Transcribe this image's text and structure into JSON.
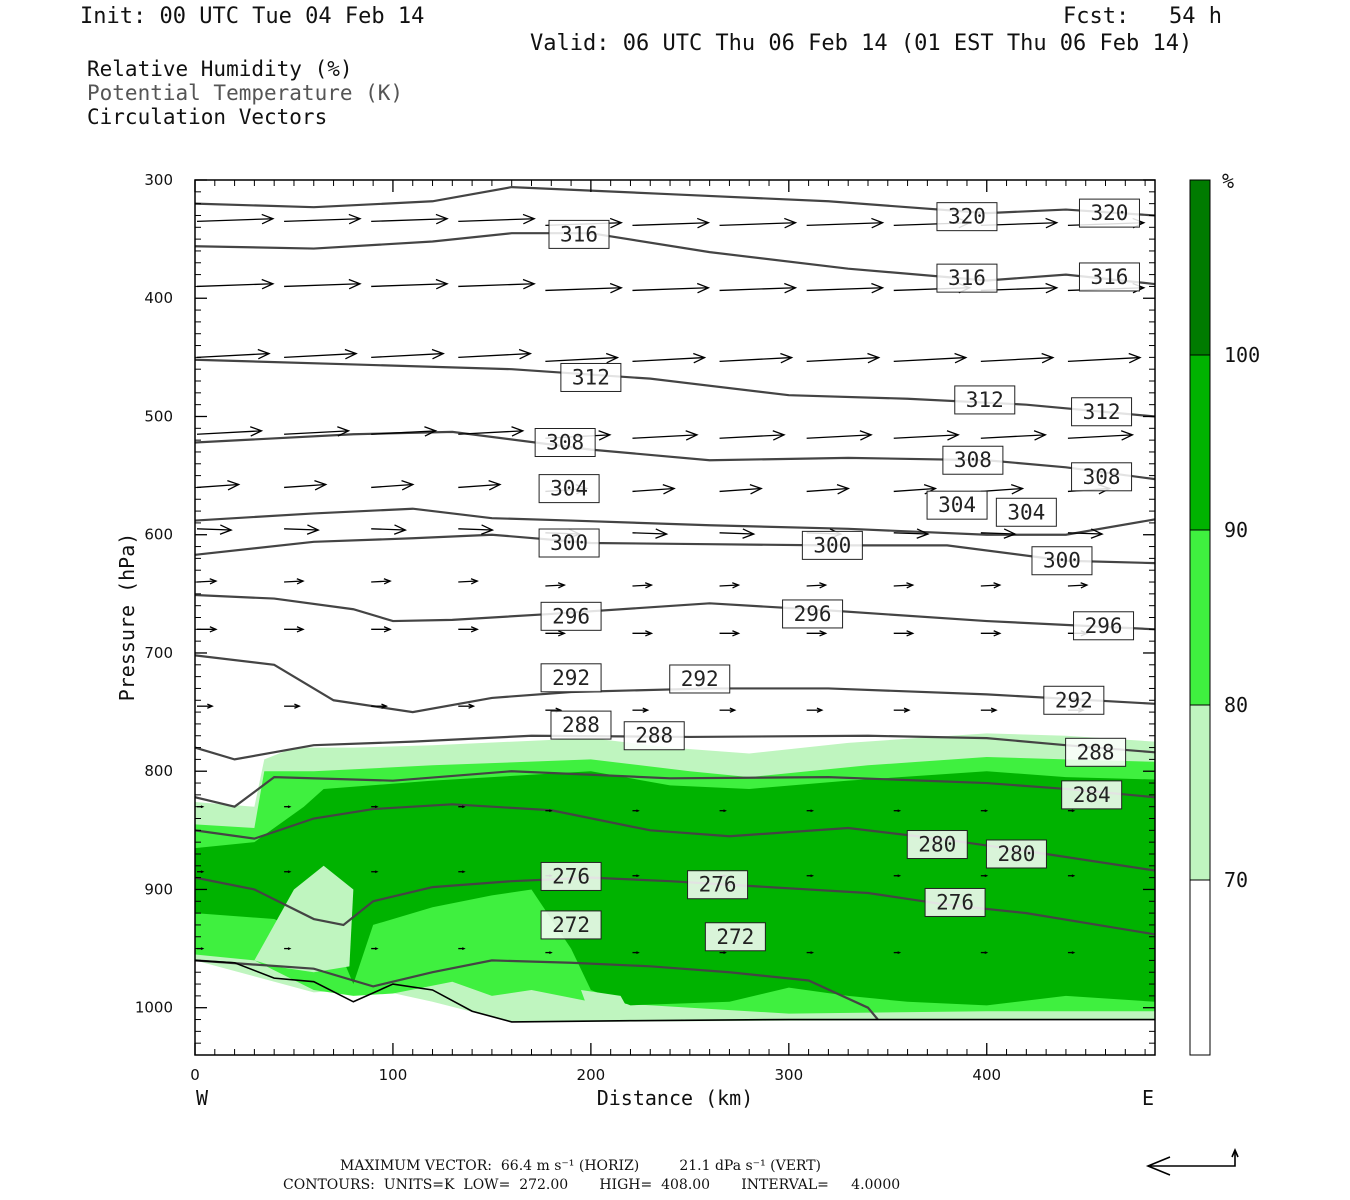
{
  "header": {
    "init": "Init: 00 UTC Tue 04 Feb 14",
    "fcst": "Fcst:   54 h",
    "valid": "Valid: 06 UTC Thu 06 Feb 14 (01 EST Thu 06 Feb 14)"
  },
  "legend": {
    "rh": "Relative Humidity (%)",
    "theta": "Potential Temperature (K)",
    "vectors": "Circulation Vectors"
  },
  "footer": {
    "max_vector": "MAXIMUM VECTOR:  66.4 m s⁻¹ (HORIZ)         21.1 dPa s⁻¹ (VERT)",
    "contours": "CONTOURS:  UNITS=K  LOW=  272.00       HIGH=  408.00       INTERVAL=     4.0000"
  },
  "colors": {
    "rh70": "#bff5bf",
    "rh80": "#3ff03f",
    "rh90": "#00b300",
    "rh100": "#007b00",
    "isentrope": "#444444",
    "vector": "#000000"
  },
  "chart_data": {
    "type": "cross-section",
    "xlabel": "Distance (km)",
    "ylabel": "Pressure (hPa)",
    "x_range": [
      0,
      485
    ],
    "y_range": [
      1040,
      300
    ],
    "x_ticks": [
      "0",
      "100",
      "200",
      "300",
      "400"
    ],
    "y_ticks": [
      "300",
      "400",
      "500",
      "600",
      "700",
      "800",
      "900",
      "1000"
    ],
    "west_label": "W",
    "east_label": "E",
    "colorbar": {
      "unit": "%",
      "ticks": [
        "100",
        "90",
        "80",
        "70"
      ]
    },
    "isentropes": [
      {
        "theta": 320,
        "points": [
          [
            0,
            320
          ],
          [
            60,
            323
          ],
          [
            120,
            318
          ],
          [
            160,
            306
          ],
          [
            240,
            312
          ],
          [
            320,
            318
          ],
          [
            400,
            328
          ],
          [
            440,
            325
          ],
          [
            485,
            330
          ]
        ],
        "labels": [
          [
            390,
            331
          ],
          [
            462,
            328
          ]
        ]
      },
      {
        "theta": 316,
        "points": [
          [
            0,
            356
          ],
          [
            60,
            358
          ],
          [
            120,
            352
          ],
          [
            160,
            345
          ],
          [
            200,
            345
          ],
          [
            260,
            361
          ],
          [
            330,
            375
          ],
          [
            400,
            385
          ],
          [
            440,
            380
          ],
          [
            485,
            388
          ]
        ],
        "labels": [
          [
            194,
            346
          ],
          [
            390,
            383
          ],
          [
            462,
            382
          ]
        ]
      },
      {
        "theta": 312,
        "points": [
          [
            0,
            452
          ],
          [
            80,
            456
          ],
          [
            160,
            460
          ],
          [
            230,
            468
          ],
          [
            300,
            482
          ],
          [
            360,
            485
          ],
          [
            420,
            490
          ],
          [
            485,
            500
          ]
        ],
        "labels": [
          [
            200,
            467
          ],
          [
            399,
            486
          ],
          [
            458,
            496
          ]
        ]
      },
      {
        "theta": 308,
        "points": [
          [
            0,
            522
          ],
          [
            80,
            515
          ],
          [
            130,
            513
          ],
          [
            200,
            528
          ],
          [
            260,
            537
          ],
          [
            330,
            535
          ],
          [
            400,
            537
          ],
          [
            440,
            543
          ],
          [
            485,
            553
          ]
        ],
        "labels": [
          [
            187,
            522
          ],
          [
            393,
            537
          ],
          [
            458,
            551
          ]
        ]
      },
      {
        "theta": 304,
        "points": [
          [
            0,
            588
          ],
          [
            60,
            582
          ],
          [
            110,
            578
          ],
          [
            150,
            586
          ],
          [
            190,
            588
          ],
          [
            260,
            592
          ],
          [
            330,
            595
          ],
          [
            400,
            600
          ],
          [
            440,
            600
          ],
          [
            485,
            587
          ]
        ],
        "labels": [
          [
            189,
            561
          ],
          [
            385,
            575
          ],
          [
            420,
            581
          ]
        ]
      },
      {
        "theta": 300,
        "points": [
          [
            0,
            617
          ],
          [
            60,
            606
          ],
          [
            110,
            603
          ],
          [
            150,
            600
          ],
          [
            200,
            607
          ],
          [
            260,
            608
          ],
          [
            320,
            609
          ],
          [
            380,
            609
          ],
          [
            440,
            622
          ],
          [
            485,
            624
          ]
        ],
        "labels": [
          [
            189,
            607
          ],
          [
            322,
            609
          ],
          [
            438,
            622
          ]
        ]
      },
      {
        "theta": 296,
        "points": [
          [
            0,
            651
          ],
          [
            40,
            654
          ],
          [
            80,
            663
          ],
          [
            100,
            673
          ],
          [
            130,
            672
          ],
          [
            180,
            667
          ],
          [
            260,
            658
          ],
          [
            320,
            664
          ],
          [
            400,
            673
          ],
          [
            485,
            680
          ]
        ],
        "labels": [
          [
            190,
            669
          ],
          [
            312,
            667
          ],
          [
            459,
            677
          ]
        ]
      },
      {
        "theta": 292,
        "points": [
          [
            0,
            702
          ],
          [
            40,
            710
          ],
          [
            70,
            740
          ],
          [
            110,
            750
          ],
          [
            150,
            738
          ],
          [
            190,
            733
          ],
          [
            260,
            730
          ],
          [
            320,
            730
          ],
          [
            400,
            735
          ],
          [
            485,
            743
          ]
        ],
        "labels": [
          [
            190,
            721
          ],
          [
            255,
            722
          ],
          [
            444,
            740
          ]
        ]
      },
      {
        "theta": 288,
        "points": [
          [
            0,
            780
          ],
          [
            20,
            790
          ],
          [
            60,
            778
          ],
          [
            110,
            775
          ],
          [
            170,
            770
          ],
          [
            250,
            771
          ],
          [
            340,
            770
          ],
          [
            400,
            772
          ],
          [
            440,
            778
          ],
          [
            485,
            784
          ]
        ],
        "labels": [
          [
            195,
            761
          ],
          [
            232,
            770
          ],
          [
            455,
            784
          ]
        ]
      },
      {
        "theta": 284,
        "points": [
          [
            0,
            822
          ],
          [
            20,
            830
          ],
          [
            40,
            805
          ],
          [
            100,
            808
          ],
          [
            160,
            800
          ],
          [
            240,
            806
          ],
          [
            320,
            805
          ],
          [
            400,
            810
          ],
          [
            440,
            815
          ],
          [
            485,
            822
          ]
        ],
        "labels": [
          [
            453,
            820
          ]
        ]
      },
      {
        "theta": 280,
        "points": [
          [
            0,
            850
          ],
          [
            30,
            857
          ],
          [
            60,
            840
          ],
          [
            90,
            832
          ],
          [
            130,
            828
          ],
          [
            180,
            833
          ],
          [
            230,
            850
          ],
          [
            270,
            855
          ],
          [
            330,
            848
          ],
          [
            380,
            858
          ],
          [
            430,
            870
          ],
          [
            485,
            884
          ]
        ],
        "labels": [
          [
            375,
            862
          ],
          [
            415,
            870
          ]
        ]
      },
      {
        "theta": 276,
        "points": [
          [
            0,
            890
          ],
          [
            30,
            900
          ],
          [
            60,
            925
          ],
          [
            75,
            930
          ],
          [
            90,
            910
          ],
          [
            120,
            898
          ],
          [
            160,
            893
          ],
          [
            200,
            890
          ],
          [
            240,
            893
          ],
          [
            290,
            898
          ],
          [
            340,
            903
          ],
          [
            380,
            913
          ],
          [
            420,
            920
          ],
          [
            485,
            938
          ]
        ],
        "labels": [
          [
            190,
            889
          ],
          [
            264,
            896
          ],
          [
            384,
            911
          ]
        ]
      },
      {
        "theta": 272,
        "points": [
          [
            0,
            960
          ],
          [
            60,
            967
          ],
          [
            90,
            982
          ],
          [
            120,
            970
          ],
          [
            150,
            960
          ],
          [
            190,
            962
          ],
          [
            230,
            965
          ],
          [
            270,
            970
          ],
          [
            310,
            977
          ],
          [
            340,
            1000
          ],
          [
            345,
            1010
          ]
        ],
        "labels": [
          [
            190,
            930
          ],
          [
            273,
            940
          ]
        ]
      }
    ],
    "vectors_hint": "circulation vectors across the section; max 66.4 m/s horizontal, 21.1 dPa/s vertical"
  }
}
